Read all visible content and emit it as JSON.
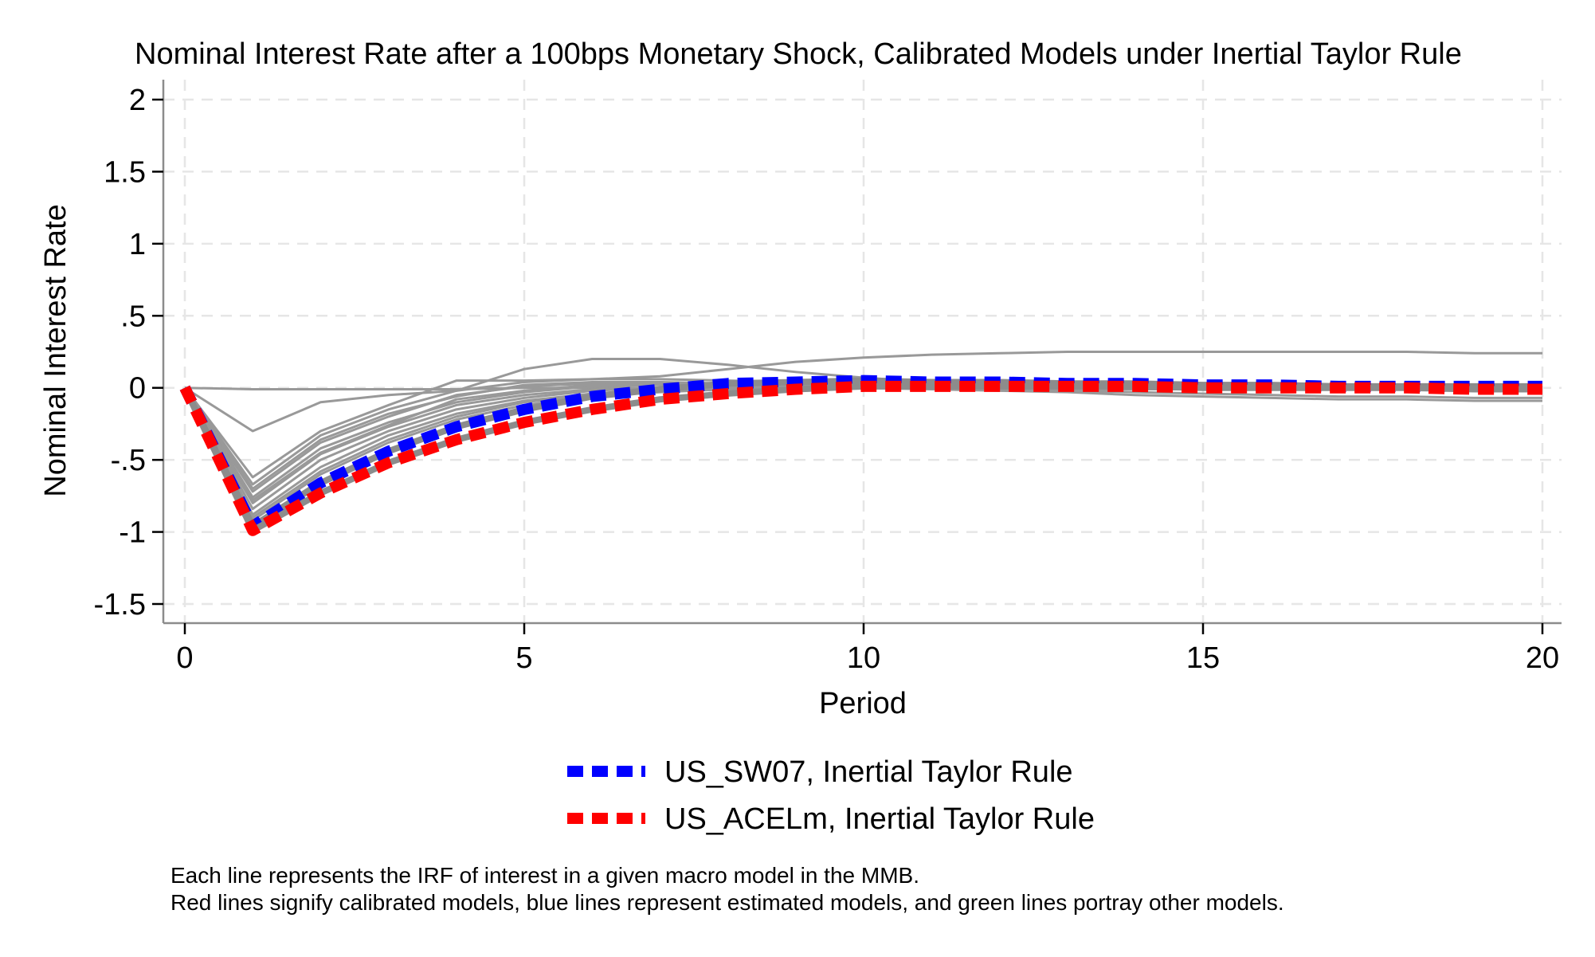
{
  "chart_data": {
    "type": "line",
    "title": "Nominal Interest Rate after a 100bps Monetary Shock, Calibrated Models under Inertial Taylor Rule",
    "xlabel": "Period",
    "ylabel": "Nominal Interest Rate",
    "xlim": [
      0,
      20
    ],
    "ylim": [
      -1.5,
      2
    ],
    "x_ticks": [
      0,
      5,
      10,
      15,
      20
    ],
    "x_tick_labels": [
      "0",
      "5",
      "10",
      "15",
      "20"
    ],
    "y_ticks": [
      2,
      1.5,
      1,
      0.5,
      0,
      -0.5,
      -1,
      -1.5
    ],
    "y_tick_labels": [
      "2",
      "1.5",
      "1",
      ".5",
      "0",
      "-.5",
      "-1",
      "-1.5"
    ],
    "grid": true,
    "x": [
      0,
      1,
      2,
      3,
      4,
      5,
      6,
      7,
      8,
      9,
      10,
      11,
      12,
      13,
      14,
      15,
      16,
      17,
      18,
      19,
      20
    ],
    "background_series": [
      {
        "values": [
          0,
          -0.01,
          -0.01,
          -0.01,
          -0.01,
          0,
          0,
          0,
          0,
          0,
          0,
          0,
          0,
          0,
          0,
          0,
          0,
          0,
          0,
          0,
          0
        ]
      },
      {
        "values": [
          0,
          -0.3,
          -0.1,
          -0.05,
          -0.02,
          0.13,
          0.2,
          0.2,
          0.16,
          0.11,
          0.07,
          0.04,
          0.02,
          0.01,
          0,
          0,
          0,
          0,
          0,
          0,
          0
        ]
      },
      {
        "values": [
          0,
          -0.62,
          -0.3,
          -0.12,
          0.05,
          0.05,
          0.06,
          0.08,
          0.13,
          0.18,
          0.21,
          0.23,
          0.24,
          0.25,
          0.25,
          0.25,
          0.25,
          0.25,
          0.25,
          0.24,
          0.24
        ]
      },
      {
        "values": [
          0,
          -0.67,
          -0.33,
          -0.15,
          -0.02,
          0.04,
          0.06,
          0.06,
          0.05,
          0.04,
          0.03,
          0.02,
          0.01,
          0,
          0,
          0,
          0,
          0,
          0,
          0,
          0
        ]
      },
      {
        "values": [
          0,
          -0.72,
          -0.38,
          -0.2,
          -0.05,
          0.01,
          0.03,
          0.03,
          0.02,
          0.01,
          0,
          0,
          -0.01,
          -0.01,
          -0.01,
          -0.01,
          -0.01,
          -0.01,
          -0.01,
          -0.01,
          -0.01
        ]
      },
      {
        "values": [
          0,
          -0.76,
          -0.42,
          -0.24,
          -0.1,
          -0.03,
          0.01,
          0.02,
          0.02,
          0.02,
          0.01,
          0.01,
          0,
          0,
          0,
          0,
          0,
          0,
          0,
          0,
          0
        ]
      },
      {
        "values": [
          0,
          -0.8,
          -0.46,
          -0.27,
          -0.12,
          -0.05,
          -0.01,
          0,
          0,
          0,
          0,
          0,
          -0.01,
          -0.02,
          -0.03,
          -0.04,
          -0.05,
          -0.06,
          -0.06,
          -0.07,
          -0.07
        ]
      },
      {
        "values": [
          0,
          -0.84,
          -0.5,
          -0.3,
          -0.15,
          -0.07,
          -0.02,
          0,
          0.01,
          0.01,
          0,
          -0.01,
          -0.02,
          -0.03,
          -0.05,
          -0.06,
          -0.07,
          -0.08,
          -0.08,
          -0.09,
          -0.09
        ]
      },
      {
        "values": [
          0,
          -0.88,
          -0.55,
          -0.33,
          -0.18,
          -0.09,
          -0.04,
          -0.01,
          0,
          0,
          0,
          0,
          0,
          0,
          0,
          0,
          0,
          0,
          0,
          0,
          0
        ]
      },
      {
        "values": [
          0,
          -0.9,
          -0.58,
          -0.36,
          -0.2,
          -0.1,
          -0.05,
          -0.02,
          -0.01,
          0,
          0,
          0,
          0,
          0,
          0,
          0,
          0,
          0,
          0,
          0,
          0
        ]
      },
      {
        "values": [
          0,
          -0.92,
          -0.6,
          -0.38,
          -0.22,
          -0.12,
          -0.06,
          -0.03,
          -0.01,
          0,
          0,
          0,
          0,
          0,
          0,
          0,
          0,
          0,
          0,
          0,
          0
        ]
      },
      {
        "values": [
          0,
          -0.7,
          -0.36,
          -0.18,
          -0.06,
          0.02,
          0.04,
          0.04,
          0.03,
          0.02,
          0.01,
          0.01,
          0,
          0,
          0,
          0,
          0,
          0,
          0,
          0,
          0
        ]
      },
      {
        "values": [
          0,
          -0.78,
          -0.45,
          -0.26,
          -0.08,
          -0.02,
          0.02,
          0.03,
          0.03,
          0.02,
          0.02,
          0.01,
          0.01,
          0,
          0,
          0,
          0,
          0,
          0,
          0,
          0
        ]
      }
    ],
    "series": [
      {
        "name": "US_SW07, Inertial Taylor Rule",
        "color": "#0000ff",
        "values": [
          0,
          -0.96,
          -0.66,
          -0.44,
          -0.27,
          -0.15,
          -0.06,
          -0.01,
          0.03,
          0.04,
          0.05,
          0.04,
          0.04,
          0.03,
          0.03,
          0.02,
          0.02,
          0.01,
          0.01,
          0.01,
          0.01
        ]
      },
      {
        "name": "US_ACELm, Inertial Taylor Rule",
        "color": "#ff0000",
        "values": [
          0,
          -0.99,
          -0.73,
          -0.52,
          -0.36,
          -0.24,
          -0.15,
          -0.08,
          -0.04,
          -0.01,
          0.01,
          0.01,
          0.01,
          0.01,
          0.01,
          0,
          0,
          0,
          0,
          -0.01,
          -0.01
        ]
      }
    ],
    "colors": {
      "background": "#999999",
      "grid": "#e6e6e6",
      "outline": "#8c8c8c"
    },
    "legend_position": "bottom",
    "notes": [
      "Each line represents the IRF of interest in a given macro model in the MMB.",
      "Red lines signify calibrated models, blue lines represent estimated models, and green lines portray other models."
    ]
  }
}
